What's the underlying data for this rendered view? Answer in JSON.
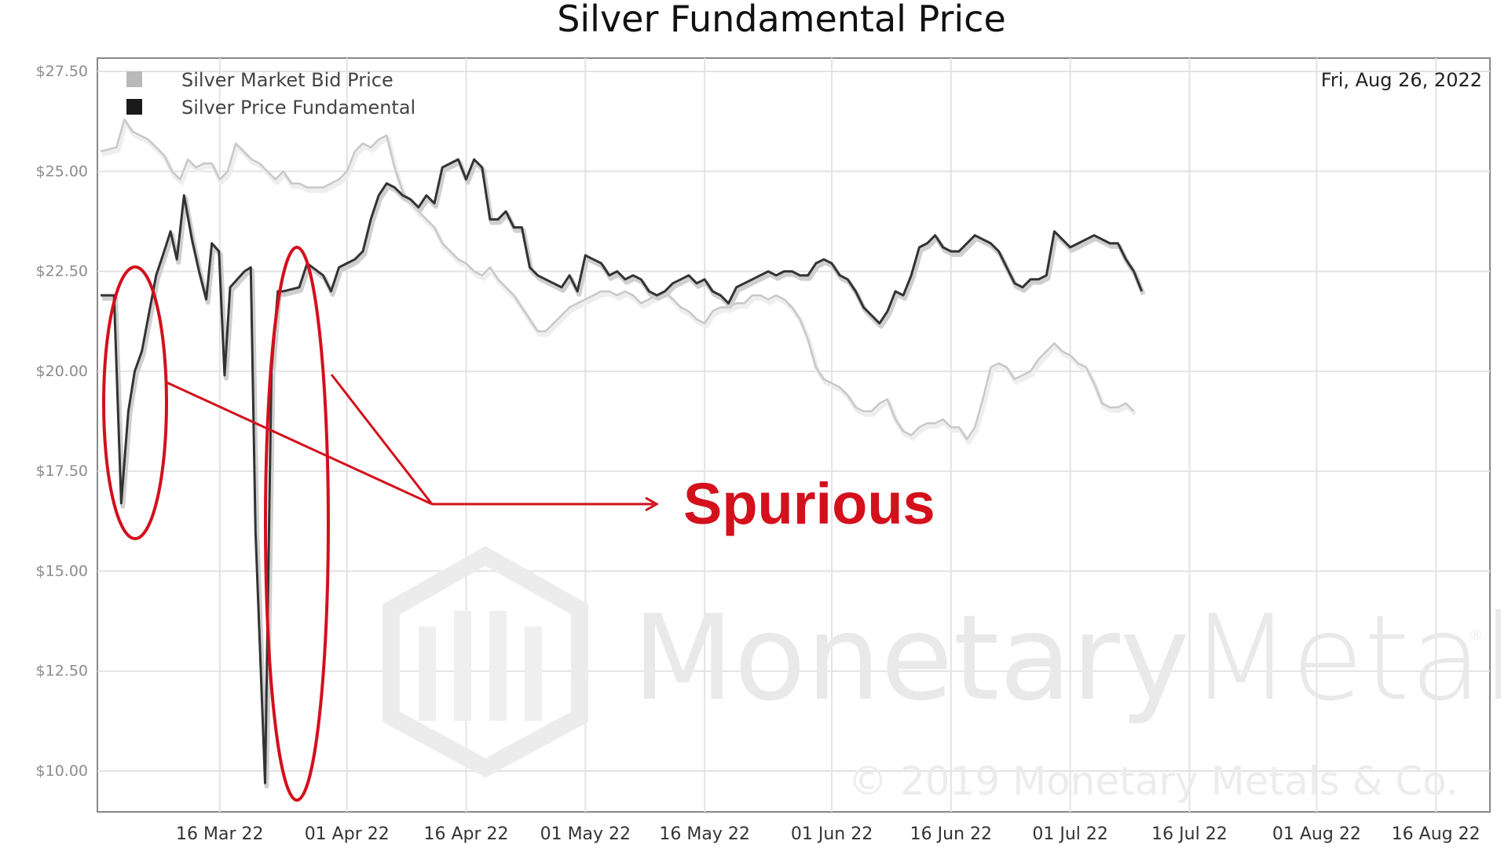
{
  "chart_data": {
    "type": "line",
    "title": "Silver Fundamental Price",
    "date_label": "Fri, Aug 26, 2022",
    "ylim": [
      9,
      28
    ],
    "y_ticks": [
      {
        "value": 27.5,
        "label": "$27.50"
      },
      {
        "value": 25.0,
        "label": "$25.00"
      },
      {
        "value": 22.5,
        "label": "$22.50"
      },
      {
        "value": 20.0,
        "label": "$20.00"
      },
      {
        "value": 17.5,
        "label": "$17.50"
      },
      {
        "value": 15.0,
        "label": "$15.00"
      },
      {
        "value": 12.5,
        "label": "$12.50"
      },
      {
        "value": 10.0,
        "label": "$10.00"
      }
    ],
    "x_ticks": [
      {
        "day": 15,
        "label": "16 Mar 22"
      },
      {
        "day": 31,
        "label": "01 Apr 22"
      },
      {
        "day": 46,
        "label": "16 Apr 22"
      },
      {
        "day": 61,
        "label": "01 May 22"
      },
      {
        "day": 76,
        "label": "16 May 22"
      },
      {
        "day": 92,
        "label": "01 Jun 22"
      },
      {
        "day": 107,
        "label": "16 Jun 22"
      },
      {
        "day": 122,
        "label": "01 Jul 22"
      },
      {
        "day": 137,
        "label": "16 Jul 22"
      },
      {
        "day": 153,
        "label": "01 Aug 22"
      },
      {
        "day": 168,
        "label": "16 Aug 22"
      }
    ],
    "grid": true,
    "legend_position": "top-left",
    "series": [
      {
        "name": "Silver Market Bid Price",
        "color": "#c8c8c8",
        "points": [
          [
            0,
            25.5
          ],
          [
            2,
            25.6
          ],
          [
            3,
            26.3
          ],
          [
            4,
            26.0
          ],
          [
            6,
            25.8
          ],
          [
            8,
            25.4
          ],
          [
            9,
            25.0
          ],
          [
            10,
            24.8
          ],
          [
            11,
            25.3
          ],
          [
            12,
            25.1
          ],
          [
            13,
            25.2
          ],
          [
            14,
            25.2
          ],
          [
            15,
            24.8
          ],
          [
            16,
            25.0
          ],
          [
            17,
            25.7
          ],
          [
            18,
            25.5
          ],
          [
            19,
            25.3
          ],
          [
            20,
            25.2
          ],
          [
            21,
            25.0
          ],
          [
            22,
            24.8
          ],
          [
            23,
            25.0
          ],
          [
            24,
            24.7
          ],
          [
            25,
            24.7
          ],
          [
            26,
            24.6
          ],
          [
            27,
            24.6
          ],
          [
            28,
            24.6
          ],
          [
            29,
            24.7
          ],
          [
            30,
            24.8
          ],
          [
            31,
            25.0
          ],
          [
            32,
            25.5
          ],
          [
            33,
            25.7
          ],
          [
            34,
            25.6
          ],
          [
            35,
            25.8
          ],
          [
            36,
            25.9
          ],
          [
            37,
            25.1
          ],
          [
            38,
            24.5
          ],
          [
            39,
            24.2
          ],
          [
            40,
            24.0
          ],
          [
            41,
            23.8
          ],
          [
            42,
            23.6
          ],
          [
            43,
            23.2
          ],
          [
            44,
            23.0
          ],
          [
            45,
            22.8
          ],
          [
            46,
            22.7
          ],
          [
            47,
            22.5
          ],
          [
            48,
            22.4
          ],
          [
            49,
            22.6
          ],
          [
            50,
            22.3
          ],
          [
            51,
            22.1
          ],
          [
            52,
            21.9
          ],
          [
            53,
            21.6
          ],
          [
            54,
            21.3
          ],
          [
            55,
            21.0
          ],
          [
            56,
            21.0
          ],
          [
            57,
            21.2
          ],
          [
            58,
            21.4
          ],
          [
            59,
            21.6
          ],
          [
            60,
            21.7
          ],
          [
            61,
            21.8
          ],
          [
            62,
            21.9
          ],
          [
            63,
            22.0
          ],
          [
            64,
            22.0
          ],
          [
            65,
            21.9
          ],
          [
            66,
            22.0
          ],
          [
            67,
            21.9
          ],
          [
            68,
            21.7
          ],
          [
            69,
            21.8
          ],
          [
            70,
            21.9
          ],
          [
            71,
            22.0
          ],
          [
            72,
            21.8
          ],
          [
            73,
            21.6
          ],
          [
            74,
            21.5
          ],
          [
            75,
            21.3
          ],
          [
            76,
            21.2
          ],
          [
            77,
            21.5
          ],
          [
            78,
            21.6
          ],
          [
            79,
            21.6
          ],
          [
            80,
            21.7
          ],
          [
            81,
            21.7
          ],
          [
            82,
            21.9
          ],
          [
            83,
            21.9
          ],
          [
            84,
            21.8
          ],
          [
            85,
            21.9
          ],
          [
            86,
            21.8
          ],
          [
            87,
            21.6
          ],
          [
            88,
            21.3
          ],
          [
            89,
            20.8
          ],
          [
            90,
            20.1
          ],
          [
            91,
            19.8
          ],
          [
            92,
            19.7
          ],
          [
            93,
            19.6
          ],
          [
            94,
            19.4
          ],
          [
            95,
            19.1
          ],
          [
            96,
            19.0
          ],
          [
            97,
            19.0
          ],
          [
            98,
            19.2
          ],
          [
            99,
            19.3
          ],
          [
            100,
            18.8
          ],
          [
            101,
            18.5
          ],
          [
            102,
            18.4
          ],
          [
            103,
            18.6
          ],
          [
            104,
            18.7
          ],
          [
            105,
            18.7
          ],
          [
            106,
            18.8
          ],
          [
            107,
            18.6
          ],
          [
            108,
            18.6
          ],
          [
            109,
            18.3
          ],
          [
            110,
            18.6
          ],
          [
            111,
            19.3
          ],
          [
            112,
            20.1
          ],
          [
            113,
            20.2
          ],
          [
            114,
            20.1
          ],
          [
            115,
            19.8
          ],
          [
            116,
            19.9
          ],
          [
            117,
            20.0
          ],
          [
            118,
            20.3
          ],
          [
            119,
            20.5
          ],
          [
            120,
            20.7
          ],
          [
            121,
            20.5
          ],
          [
            122,
            20.4
          ],
          [
            123,
            20.2
          ],
          [
            124,
            20.1
          ],
          [
            125,
            19.7
          ],
          [
            126,
            19.2
          ],
          [
            127,
            19.1
          ],
          [
            128,
            19.1
          ],
          [
            129,
            19.2
          ],
          [
            130,
            19.0
          ]
        ]
      },
      {
        "name": "Silver Price Fundamental",
        "color": "#333333",
        "points": [
          [
            0,
            21.9
          ],
          [
            1,
            21.9
          ],
          [
            1.7,
            21.9
          ],
          [
            2.6,
            16.7
          ],
          [
            3.5,
            19.0
          ],
          [
            4.3,
            20.0
          ],
          [
            5.2,
            20.5
          ],
          [
            7,
            22.4
          ],
          [
            8,
            23.0
          ],
          [
            8.8,
            23.5
          ],
          [
            9.6,
            22.8
          ],
          [
            10.5,
            24.4
          ],
          [
            11.5,
            23.3
          ],
          [
            12.4,
            22.5
          ],
          [
            13.3,
            21.8
          ],
          [
            14,
            23.2
          ],
          [
            14.9,
            23.0
          ],
          [
            15.6,
            19.9
          ],
          [
            16.3,
            22.1
          ],
          [
            17.2,
            22.3
          ],
          [
            18.1,
            22.5
          ],
          [
            18.9,
            22.6
          ],
          [
            19.5,
            16.0
          ],
          [
            20.7,
            9.7
          ],
          [
            21.5,
            20.0
          ],
          [
            22.3,
            22.0
          ],
          [
            23,
            22.0
          ],
          [
            25,
            22.1
          ],
          [
            26,
            22.7
          ],
          [
            28,
            22.4
          ],
          [
            29,
            22.0
          ],
          [
            30,
            22.6
          ],
          [
            31,
            22.7
          ],
          [
            32,
            22.8
          ],
          [
            33,
            23.0
          ],
          [
            34,
            23.8
          ],
          [
            35,
            24.4
          ],
          [
            36,
            24.7
          ],
          [
            37,
            24.6
          ],
          [
            38,
            24.4
          ],
          [
            39,
            24.3
          ],
          [
            40,
            24.1
          ],
          [
            41,
            24.4
          ],
          [
            42,
            24.2
          ],
          [
            43,
            25.1
          ],
          [
            44,
            25.2
          ],
          [
            45,
            25.3
          ],
          [
            46,
            24.8
          ],
          [
            47,
            25.3
          ],
          [
            48,
            25.1
          ],
          [
            49,
            23.8
          ],
          [
            50,
            23.8
          ],
          [
            51,
            24.0
          ],
          [
            52,
            23.6
          ],
          [
            53,
            23.6
          ],
          [
            54,
            22.6
          ],
          [
            55,
            22.4
          ],
          [
            56,
            22.3
          ],
          [
            57,
            22.2
          ],
          [
            58,
            22.1
          ],
          [
            59,
            22.4
          ],
          [
            60,
            22.0
          ],
          [
            61,
            22.9
          ],
          [
            62,
            22.8
          ],
          [
            63,
            22.7
          ],
          [
            64,
            22.4
          ],
          [
            65,
            22.5
          ],
          [
            66,
            22.3
          ],
          [
            67,
            22.4
          ],
          [
            68,
            22.3
          ],
          [
            69,
            22.0
          ],
          [
            70,
            21.9
          ],
          [
            71,
            22.0
          ],
          [
            72,
            22.2
          ],
          [
            73,
            22.3
          ],
          [
            74,
            22.4
          ],
          [
            75,
            22.2
          ],
          [
            76,
            22.3
          ],
          [
            77,
            22.0
          ],
          [
            78,
            21.9
          ],
          [
            79,
            21.7
          ],
          [
            80,
            22.1
          ],
          [
            81,
            22.2
          ],
          [
            82,
            22.3
          ],
          [
            83,
            22.4
          ],
          [
            84,
            22.5
          ],
          [
            85,
            22.4
          ],
          [
            86,
            22.5
          ],
          [
            87,
            22.5
          ],
          [
            88,
            22.4
          ],
          [
            89,
            22.4
          ],
          [
            90,
            22.7
          ],
          [
            91,
            22.8
          ],
          [
            92,
            22.7
          ],
          [
            93,
            22.4
          ],
          [
            94,
            22.3
          ],
          [
            95,
            22.0
          ],
          [
            96,
            21.6
          ],
          [
            97,
            21.4
          ],
          [
            98,
            21.2
          ],
          [
            99,
            21.5
          ],
          [
            100,
            22.0
          ],
          [
            101,
            21.9
          ],
          [
            102,
            22.4
          ],
          [
            103,
            23.1
          ],
          [
            104,
            23.2
          ],
          [
            105,
            23.4
          ],
          [
            106,
            23.1
          ],
          [
            107,
            23.0
          ],
          [
            108,
            23.0
          ],
          [
            109,
            23.2
          ],
          [
            110,
            23.4
          ],
          [
            111,
            23.3
          ],
          [
            112,
            23.2
          ],
          [
            113,
            23.0
          ],
          [
            114,
            22.6
          ],
          [
            115,
            22.2
          ],
          [
            116,
            22.1
          ],
          [
            117,
            22.3
          ],
          [
            118,
            22.3
          ],
          [
            119,
            22.4
          ],
          [
            120,
            23.5
          ],
          [
            121,
            23.3
          ],
          [
            122,
            23.1
          ],
          [
            123,
            23.2
          ],
          [
            124,
            23.3
          ],
          [
            125,
            23.4
          ],
          [
            126,
            23.3
          ],
          [
            127,
            23.2
          ],
          [
            128,
            23.2
          ],
          [
            129,
            22.8
          ],
          [
            130,
            22.5
          ],
          [
            131,
            22.0
          ]
        ]
      }
    ]
  },
  "annotation": {
    "label": "Spurious",
    "color": "#d3101c"
  },
  "watermark": {
    "brand_primary": "Monetary",
    "brand_secondary": "Metals",
    "registered": "®",
    "copyright": "© 2019 Monetary Metals & Co."
  }
}
